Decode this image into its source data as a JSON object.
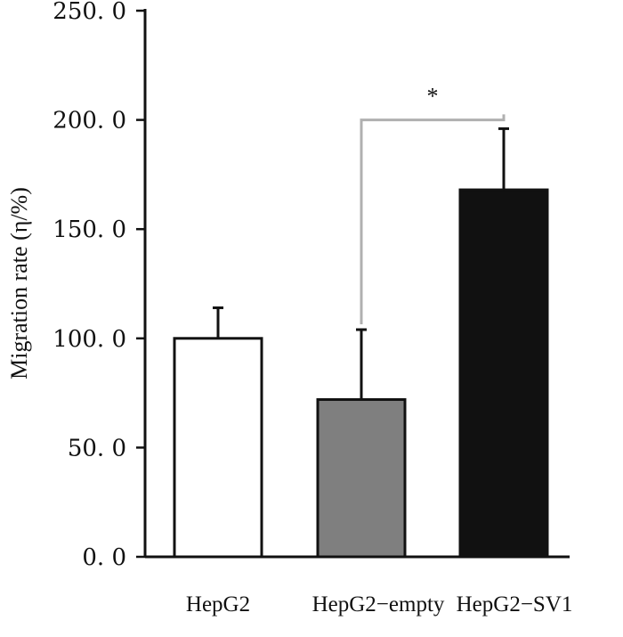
{
  "chart_data": {
    "type": "bar",
    "categories": [
      "HepG2",
      "HepG2−empty",
      "HepG2−SV1"
    ],
    "values": [
      100.0,
      72.0,
      168.0
    ],
    "error_plus": [
      14.0,
      32.0,
      28.0
    ],
    "bar_colors": [
      "#ffffff",
      "#7f7f7f",
      "#111111"
    ],
    "bar_edge_color": "#111111",
    "ylabel": "Migration rate (η/%)",
    "xlabel": "",
    "title": "",
    "ylim": [
      0,
      250
    ],
    "yticks": [
      0,
      50,
      100,
      150,
      200,
      250
    ],
    "ytick_labels": [
      "0. 0",
      "50. 0",
      "100. 0",
      "150. 0",
      "200. 0",
      "250. 0"
    ],
    "grid": false,
    "significance": {
      "from_category": "HepG2−empty",
      "to_category": "HepG2−SV1",
      "level": 200,
      "label": "*",
      "color": "#b0b0b0"
    }
  }
}
